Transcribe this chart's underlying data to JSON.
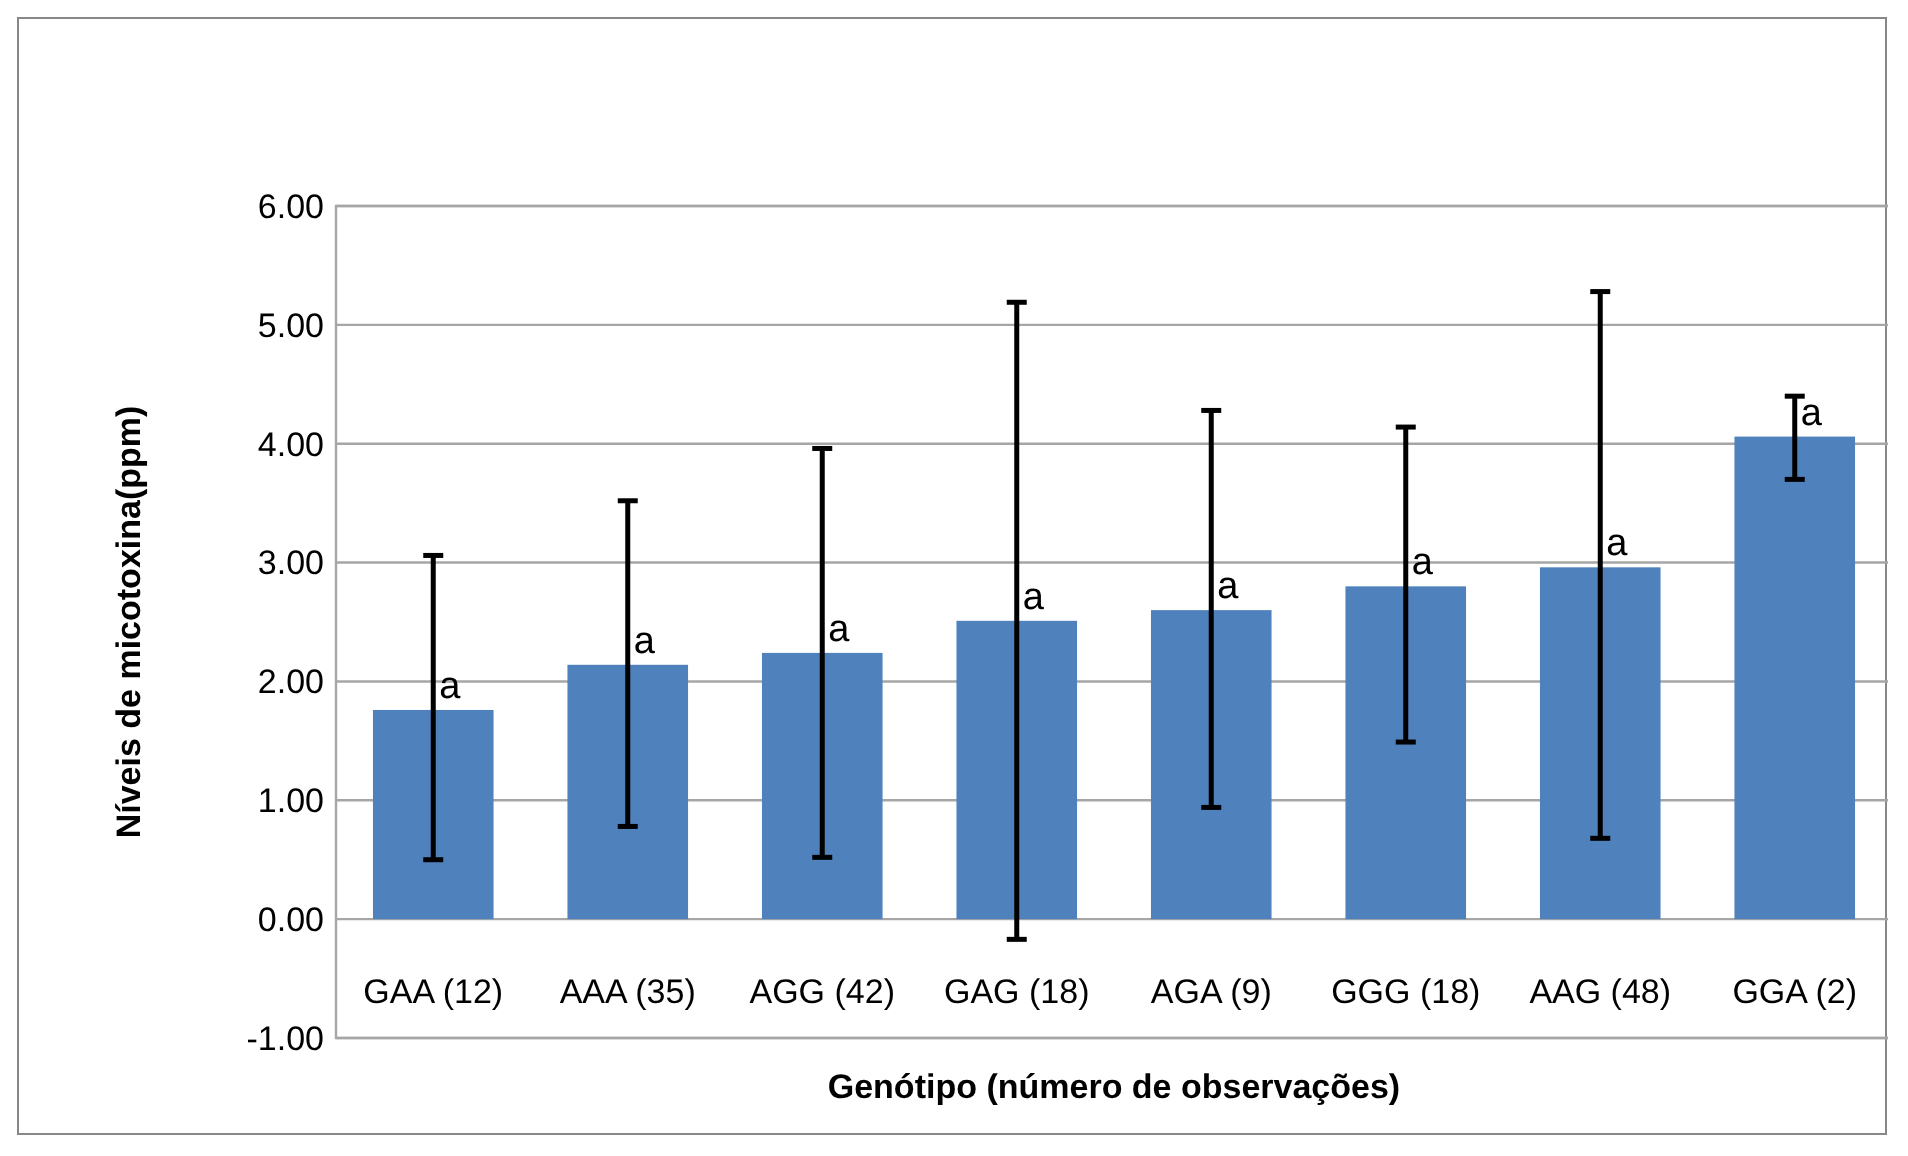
{
  "chart_data": {
    "type": "bar",
    "xlabel": "Genótipo (número de observações)",
    "ylabel": "Níveis de micotoxina(ppm)",
    "categories": [
      "GAA (12)",
      "AAA (35)",
      "AGG (42)",
      "GAG (18)",
      "AGA (9)",
      "GGG (18)",
      "AAG (48)",
      "GGA (2)"
    ],
    "values": [
      1.76,
      2.14,
      2.24,
      2.51,
      2.6,
      2.8,
      2.96,
      4.06
    ],
    "errors": [
      [
        0.5,
        3.06
      ],
      [
        0.78,
        3.52
      ],
      [
        0.52,
        3.96
      ],
      [
        -0.17,
        5.19
      ],
      [
        0.94,
        4.28
      ],
      [
        1.49,
        4.14
      ],
      [
        0.68,
        5.28
      ],
      [
        3.7,
        4.4
      ]
    ],
    "value_labels": [
      "a",
      "a",
      "a",
      "a",
      "a",
      "a",
      "a",
      "a"
    ],
    "color": "#4f81bd",
    "ylim": [
      -1,
      6
    ],
    "yticks": [
      {
        "value": -1,
        "label": "-1.00"
      },
      {
        "value": 0,
        "label": "0.00"
      },
      {
        "value": 1,
        "label": "1.00"
      },
      {
        "value": 2,
        "label": "2.00"
      },
      {
        "value": 3,
        "label": "3.00"
      },
      {
        "value": 4,
        "label": "4.00"
      },
      {
        "value": 5,
        "label": "5.00"
      },
      {
        "value": 6,
        "label": "6.00"
      }
    ],
    "grid": true
  }
}
